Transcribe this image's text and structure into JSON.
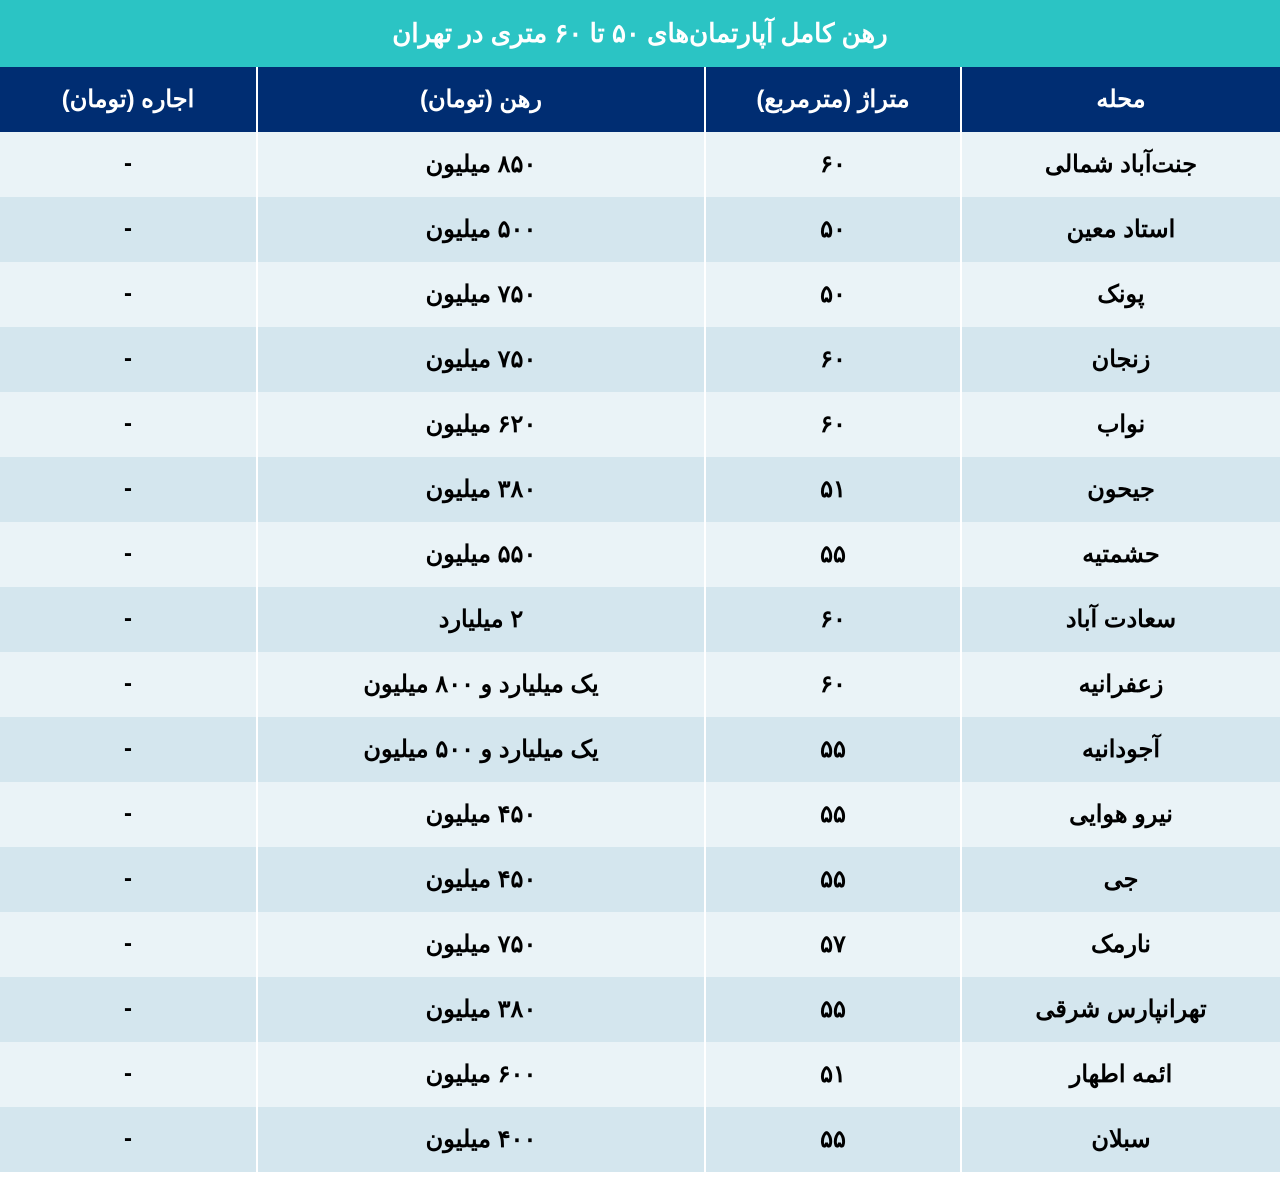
{
  "table": {
    "type": "table",
    "title": "رهن کامل آپارتمان‌های ۵۰ تا ۶۰ متری در تهران",
    "title_bg_color": "#2bc4c4",
    "title_text_color": "#ffffff",
    "title_fontsize": 26,
    "header_bg_color": "#002d72",
    "header_text_color": "#ffffff",
    "header_fontsize": 24,
    "row_even_bg": "#eaf3f7",
    "row_odd_bg": "#d4e6ee",
    "cell_text_color": "#000000",
    "cell_fontsize": 24,
    "border_color": "#ffffff",
    "columns": [
      {
        "key": "neighborhood",
        "label": "محله",
        "width": "25%"
      },
      {
        "key": "area",
        "label": "متراژ (مترمربع)",
        "width": "20%"
      },
      {
        "key": "deposit",
        "label": "رهن (تومان)",
        "width": "35%"
      },
      {
        "key": "rent",
        "label": "اجاره (تومان)",
        "width": "20%"
      }
    ],
    "rows": [
      {
        "neighborhood": "جنت‌آباد شمالی",
        "area": "۶۰",
        "deposit": "۸۵۰ میلیون",
        "rent": "-"
      },
      {
        "neighborhood": "استاد معین",
        "area": "۵۰",
        "deposit": "۵۰۰ میلیون",
        "rent": "-"
      },
      {
        "neighborhood": "پونک",
        "area": "۵۰",
        "deposit": "۷۵۰  میلیون",
        "rent": "-"
      },
      {
        "neighborhood": "زنجان",
        "area": "۶۰",
        "deposit": "۷۵۰  میلیون",
        "rent": "-"
      },
      {
        "neighborhood": "نواب",
        "area": "۶۰",
        "deposit": "۶۲۰  میلیون",
        "rent": "-"
      },
      {
        "neighborhood": "جیحون",
        "area": "۵۱",
        "deposit": "۳۸۰ میلیون",
        "rent": "-"
      },
      {
        "neighborhood": "حشمتیه",
        "area": "۵۵",
        "deposit": "۵۵۰ میلیون",
        "rent": "-"
      },
      {
        "neighborhood": "سعادت آباد",
        "area": "۶۰",
        "deposit": "۲ میلیارد",
        "rent": "-"
      },
      {
        "neighborhood": "زعفرانیه",
        "area": "۶۰",
        "deposit": "یک میلیارد و ۸۰۰ میلیون",
        "rent": "-"
      },
      {
        "neighborhood": "آجودانیه",
        "area": "۵۵",
        "deposit": "یک میلیارد و ۵۰۰ میلیون",
        "rent": "-"
      },
      {
        "neighborhood": "نیرو هوایی",
        "area": "۵۵",
        "deposit": "۴۵۰ میلیون",
        "rent": "-"
      },
      {
        "neighborhood": "جی",
        "area": "۵۵",
        "deposit": "۴۵۰ میلیون",
        "rent": "-"
      },
      {
        "neighborhood": "نارمک",
        "area": "۵۷",
        "deposit": "۷۵۰ میلیون",
        "rent": "-"
      },
      {
        "neighborhood": "تهرانپارس شرقی",
        "area": "۵۵",
        "deposit": "۳۸۰ میلیون",
        "rent": "-"
      },
      {
        "neighborhood": "ائمه اطهار",
        "area": "۵۱",
        "deposit": "۶۰۰ میلیون",
        "rent": "-"
      },
      {
        "neighborhood": "سبلان",
        "area": "۵۵",
        "deposit": "۴۰۰ میلیون",
        "rent": "-"
      }
    ]
  }
}
